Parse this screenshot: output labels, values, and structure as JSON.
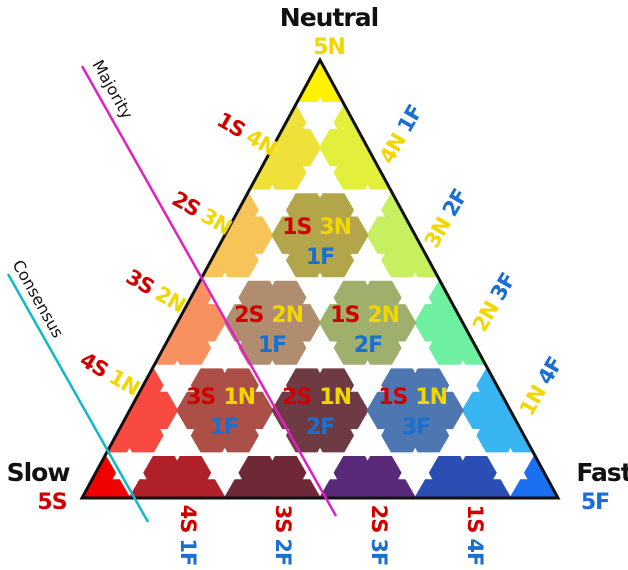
{
  "colors": {
    "slow": "#d00000",
    "neutral": "#f2d600",
    "fast": "#1a6fd0",
    "majority_line": "#e020c0",
    "consensus_line": "#10b8c8",
    "outline": "#111111"
  },
  "corners": {
    "neutral": {
      "name": "Neutral",
      "code": "5N"
    },
    "slow": {
      "name": "Slow",
      "code": "5S"
    },
    "fast": {
      "name": "Fast",
      "code": "5F"
    }
  },
  "lines": {
    "majority": "Majority",
    "consensus": "Consensus"
  },
  "left_edge": [
    {
      "s": "1S",
      "n": "4N"
    },
    {
      "s": "2S",
      "n": "3N"
    },
    {
      "s": "3S",
      "n": "2N"
    },
    {
      "s": "4S",
      "n": "1N"
    }
  ],
  "right_edge": [
    {
      "n": "4N",
      "f": "1F"
    },
    {
      "n": "3N",
      "f": "2F"
    },
    {
      "n": "2N",
      "f": "3F"
    },
    {
      "n": "1N",
      "f": "4F"
    }
  ],
  "bottom_edge": [
    {
      "s": "4S",
      "f": "1F"
    },
    {
      "s": "3S",
      "f": "2F"
    },
    {
      "s": "2S",
      "f": "3F"
    },
    {
      "s": "1S",
      "f": "4F"
    }
  ],
  "inner_cells": [
    {
      "s": "1S",
      "n": "3N",
      "f": "1F",
      "fill": "#b3a54a"
    },
    {
      "s": "2S",
      "n": "2N",
      "f": "1F",
      "fill": "#b08d6e"
    },
    {
      "s": "1S",
      "n": "2N",
      "f": "2F",
      "fill": "#9fb06c"
    },
    {
      "s": "3S",
      "n": "1N",
      "f": "1F",
      "fill": "#ac4f47"
    },
    {
      "s": "2S",
      "n": "1N",
      "f": "2F",
      "fill": "#6e3a44"
    },
    {
      "s": "1S",
      "n": "1N",
      "f": "3F",
      "fill": "#4e76b0"
    }
  ],
  "edge_cells": [
    {
      "a": 5,
      "b": 0,
      "fill": "#fef200"
    },
    {
      "a": 4,
      "b": 0,
      "fill": "#f0e03a"
    },
    {
      "a": 4,
      "b": 1,
      "fill": "#e2f03c"
    },
    {
      "a": 3,
      "b": 0,
      "fill": "#f7c45a"
    },
    {
      "a": 3,
      "b": 2,
      "fill": "#c6f060"
    },
    {
      "a": 2,
      "b": 0,
      "fill": "#f89060"
    },
    {
      "a": 2,
      "b": 3,
      "fill": "#6ef0a0"
    },
    {
      "a": 1,
      "b": 0,
      "fill": "#f84a40"
    },
    {
      "a": 1,
      "b": 4,
      "fill": "#38b4f0"
    },
    {
      "a": 0,
      "b": 0,
      "fill": "#f00000"
    },
    {
      "a": 0,
      "b": 1,
      "fill": "#b02028"
    },
    {
      "a": 0,
      "b": 2,
      "fill": "#6e2838"
    },
    {
      "a": 0,
      "b": 3,
      "fill": "#5a2a7a"
    },
    {
      "a": 0,
      "b": 4,
      "fill": "#2a4eb4"
    },
    {
      "a": 0,
      "b": 5,
      "fill": "#1a70f0"
    }
  ]
}
